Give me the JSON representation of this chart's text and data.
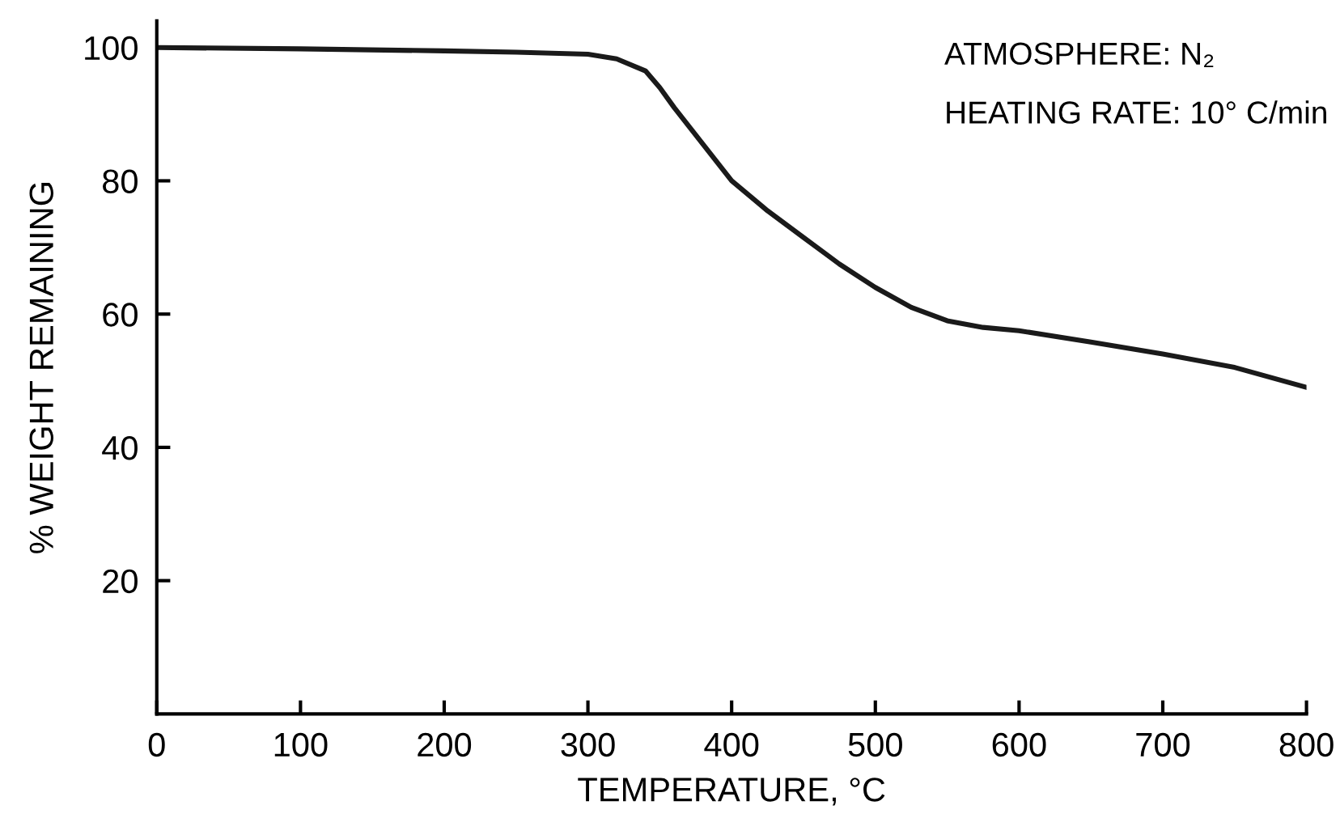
{
  "chart_data": {
    "type": "line",
    "xlabel": "TEMPERATURE, °C",
    "ylabel": "% WEIGHT REMAINING",
    "annotations": [
      "ATMOSPHERE: N₂",
      "HEATING RATE: 10° C/min"
    ],
    "x": [
      0,
      100,
      200,
      250,
      300,
      320,
      340,
      350,
      360,
      380,
      400,
      425,
      450,
      475,
      500,
      525,
      550,
      575,
      600,
      650,
      700,
      750,
      800
    ],
    "series": [
      {
        "color": "#1a1a1a",
        "values": [
          100,
          99.8,
          99.5,
          99.3,
          99,
          98.3,
          96.5,
          94,
          91,
          85.5,
          80,
          75.5,
          71.5,
          67.5,
          64,
          61,
          59,
          58,
          57.5,
          55.8,
          54,
          52,
          49
        ]
      }
    ],
    "xlim": [
      0,
      800
    ],
    "ylim": [
      0,
      104
    ],
    "xticks": [
      0,
      100,
      200,
      300,
      400,
      500,
      600,
      700,
      800
    ],
    "yticks": [
      20,
      40,
      60,
      80,
      100
    ],
    "grid": false,
    "legend": false,
    "marker": "none",
    "line_style": "solid"
  }
}
